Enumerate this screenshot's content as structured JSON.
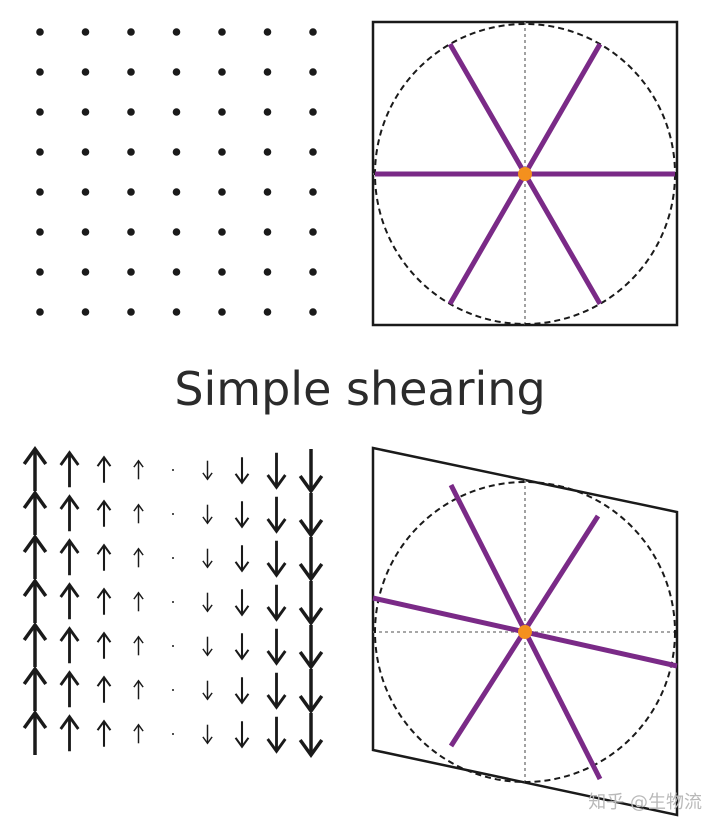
{
  "title": "Simple shearing",
  "watermark": "知乎 @生物流",
  "colors": {
    "ink": "#1a1a1a",
    "spoke": "#7a2a87",
    "center_dot": "#f4901e",
    "guide": "#8a8a8a"
  },
  "dot_grid": {
    "rows": 8,
    "cols": 7
  },
  "velocity_field": {
    "rows": 7,
    "columns": [
      {
        "direction": "up",
        "magnitude": 1.0
      },
      {
        "direction": "up",
        "magnitude": 0.75
      },
      {
        "direction": "up",
        "magnitude": 0.45
      },
      {
        "direction": "up",
        "magnitude": 0.22
      },
      {
        "direction": "none",
        "magnitude": 0
      },
      {
        "direction": "down",
        "magnitude": 0.22
      },
      {
        "direction": "down",
        "magnitude": 0.45
      },
      {
        "direction": "down",
        "magnitude": 0.75
      },
      {
        "direction": "down",
        "magnitude": 1.0
      }
    ]
  },
  "panels": {
    "before": {
      "spokes": 3,
      "spoke_angles_deg": [
        0,
        60,
        120
      ]
    },
    "after": {
      "spokes": 3,
      "shear": "vertical"
    }
  }
}
